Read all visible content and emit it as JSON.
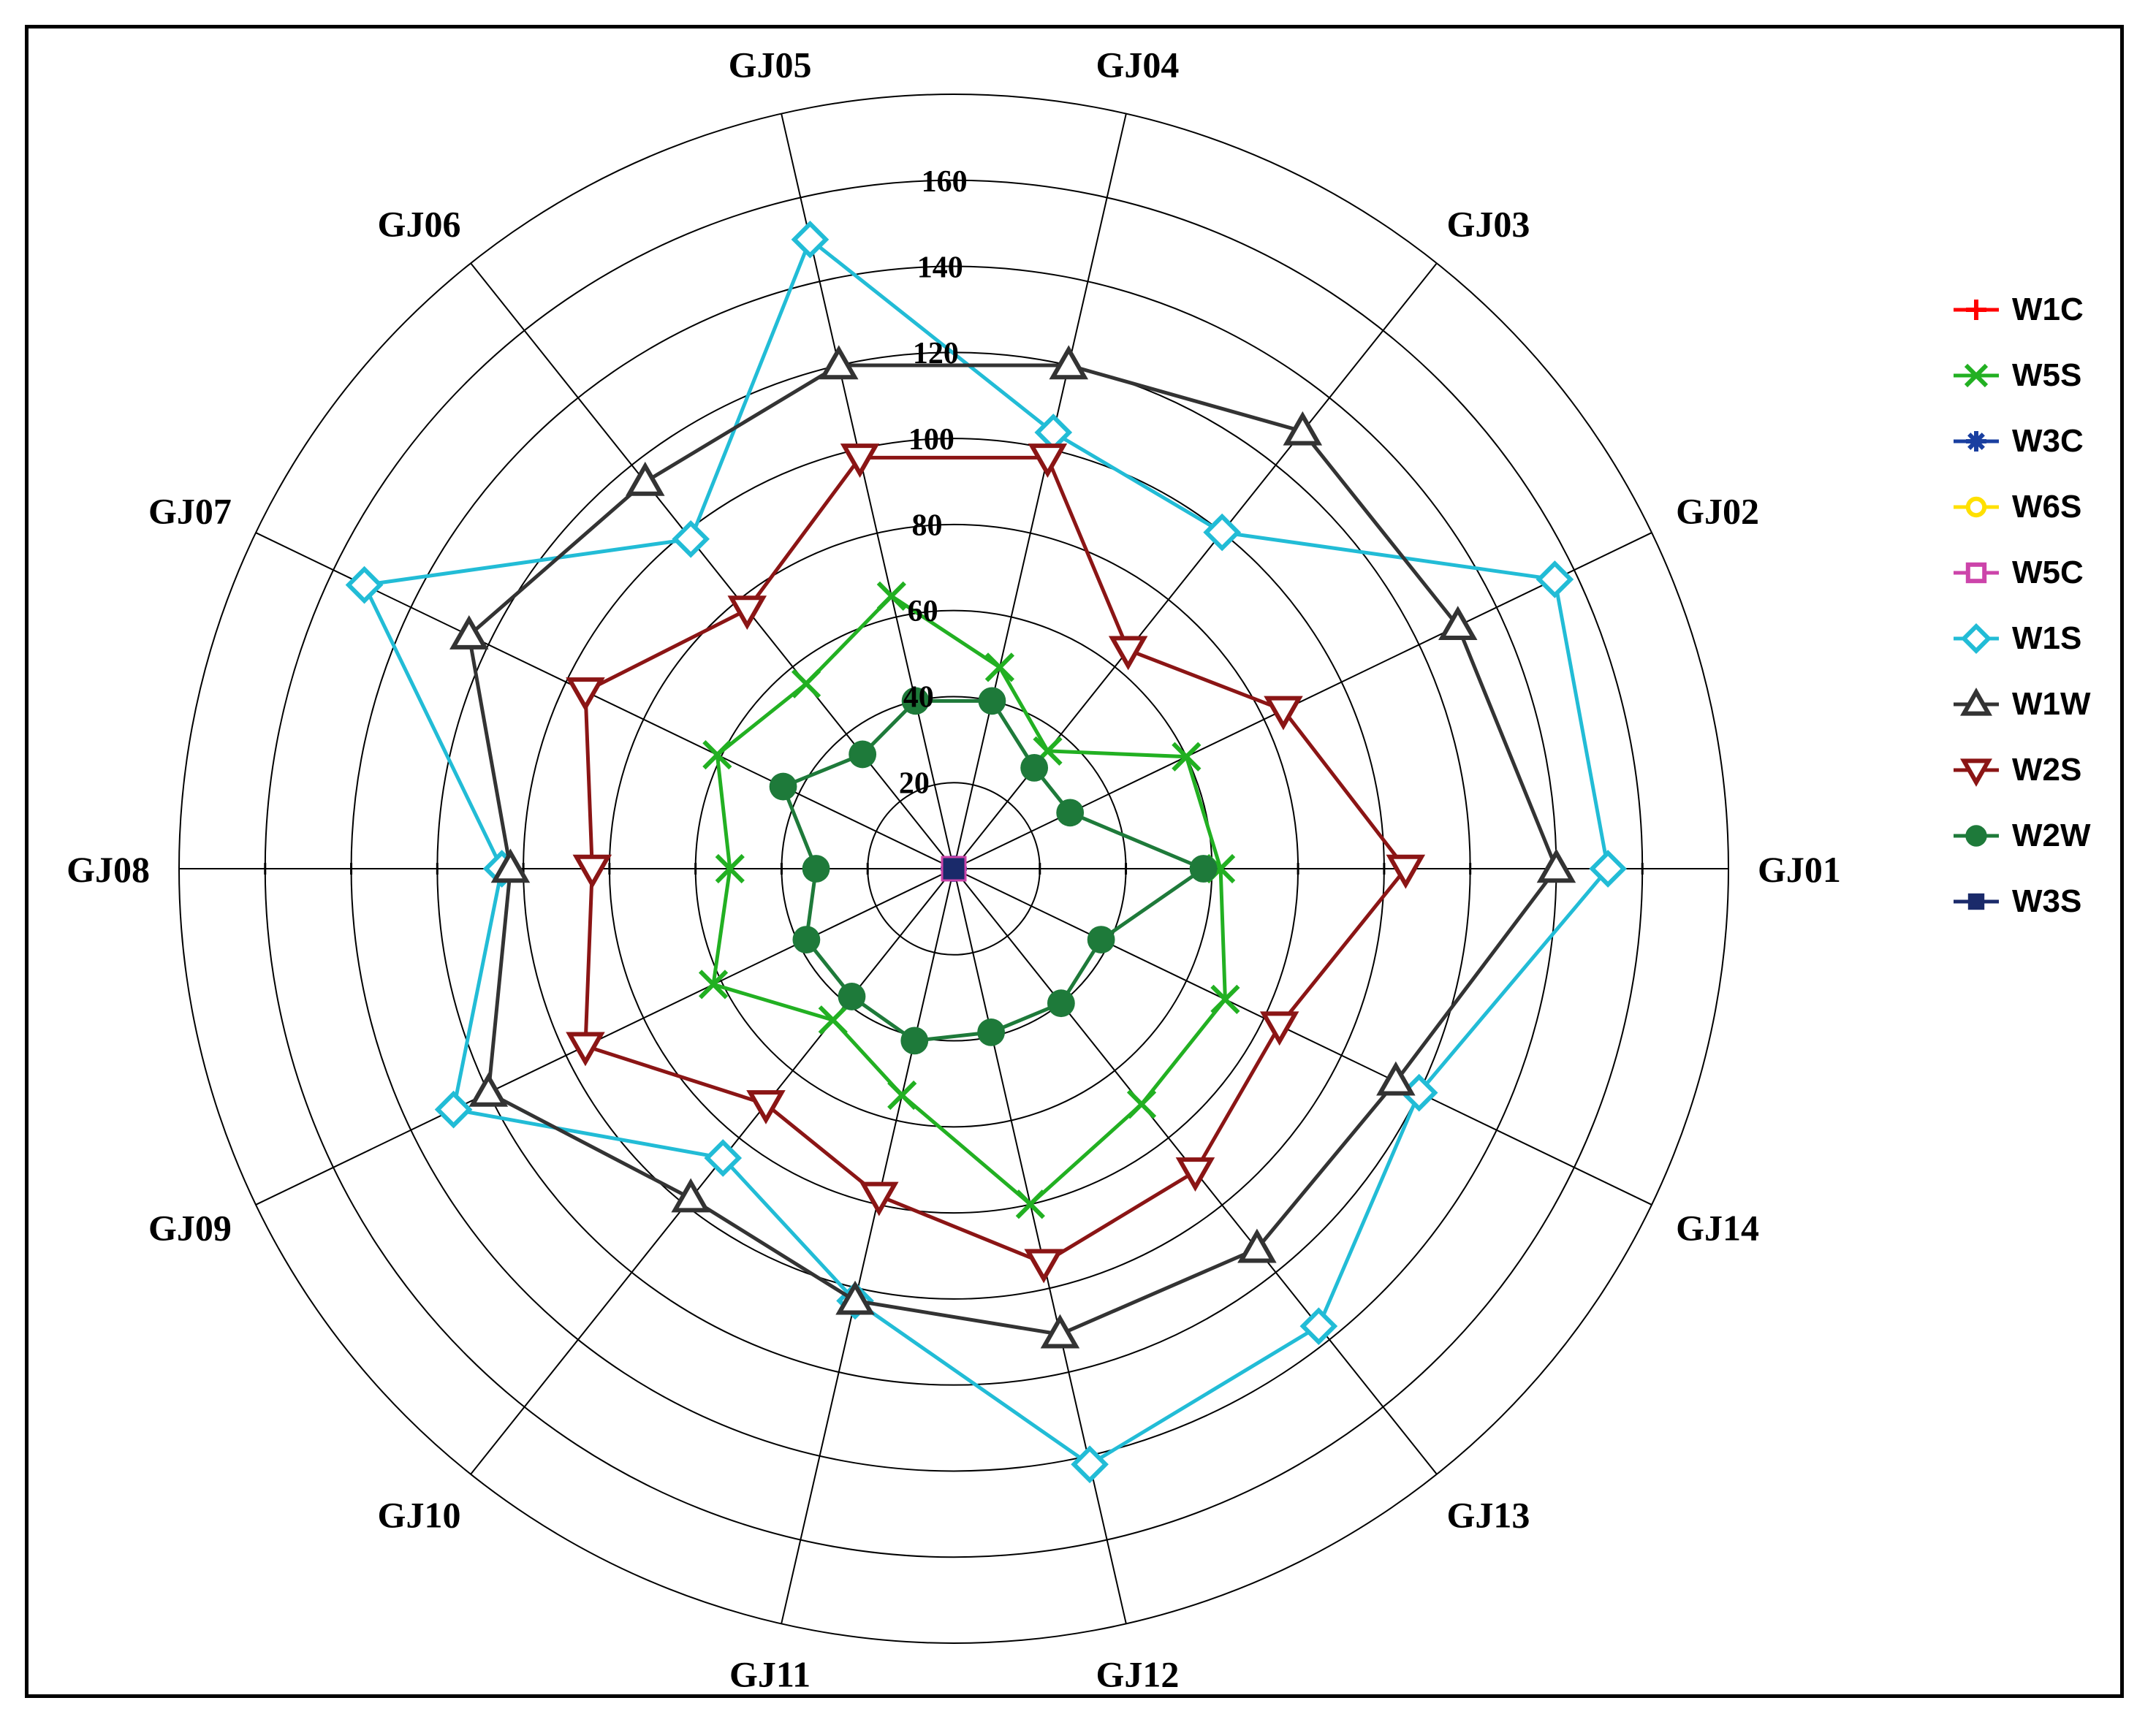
{
  "chart_data": {
    "type": "radar",
    "title": "",
    "categories": [
      "GJ01",
      "GJ02",
      "GJ03",
      "GJ04",
      "GJ05",
      "GJ06",
      "GJ07",
      "GJ08",
      "GJ09",
      "GJ10",
      "GJ11",
      "GJ12",
      "GJ13",
      "GJ14"
    ],
    "r_ticks": [
      20,
      40,
      60,
      80,
      100,
      120,
      140,
      160
    ],
    "r_tick_labels": [
      "20",
      "40",
      "60",
      "80",
      "100",
      "120",
      "140",
      "160"
    ],
    "r_range": [
      0,
      160
    ],
    "grid": true,
    "legend_position": "right",
    "series": [
      {
        "name": "W1C",
        "color": "#ff0000",
        "marker": "plus",
        "values": [
          0,
          0,
          0,
          0,
          0,
          0,
          0,
          0,
          0,
          0,
          0,
          0,
          0,
          0
        ]
      },
      {
        "name": "W5S",
        "color": "#22b022",
        "marker": "x",
        "values": [
          62,
          60,
          35,
          48,
          65,
          55,
          61,
          52,
          62,
          45,
          54,
          80,
          70,
          70
        ]
      },
      {
        "name": "W3C",
        "color": "#1a3fa0",
        "marker": "asterisk",
        "values": [
          0,
          0,
          0,
          0,
          0,
          0,
          0,
          0,
          0,
          0,
          0,
          0,
          0,
          0
        ]
      },
      {
        "name": "W6S",
        "color": "#ffe000",
        "marker": "circle",
        "values": [
          0,
          0,
          0,
          0,
          0,
          0,
          0,
          0,
          0,
          0,
          0,
          0,
          0,
          0
        ]
      },
      {
        "name": "W5C",
        "color": "#cc44aa",
        "marker": "square",
        "values": [
          0,
          0,
          0,
          0,
          0,
          0,
          0,
          0,
          0,
          0,
          0,
          0,
          0,
          0
        ]
      },
      {
        "name": "W1S",
        "color": "#22bcd6",
        "marker": "diamond",
        "values": [
          152,
          155,
          100,
          104,
          150,
          98,
          152,
          105,
          129,
          86,
          103,
          142,
          136,
          120
        ]
      },
      {
        "name": "W1W",
        "color": "#333333",
        "marker": "triangle-up",
        "values": [
          140,
          130,
          130,
          120,
          120,
          115,
          125,
          103,
          120,
          98,
          103,
          111,
          113,
          114
        ]
      },
      {
        "name": "W2S",
        "color": "#8b1515",
        "marker": "triangle-down",
        "values": [
          105,
          85,
          65,
          98,
          98,
          77,
          95,
          84,
          95,
          70,
          78,
          94,
          90,
          84
        ]
      },
      {
        "name": "W2W",
        "color": "#1e7a3a",
        "marker": "circle-filled",
        "values": [
          58,
          30,
          30,
          40,
          40,
          34,
          44,
          32,
          38,
          38,
          41,
          39,
          40,
          38
        ]
      },
      {
        "name": "W3S",
        "color": "#1a2a6a",
        "marker": "square-filled",
        "values": [
          0,
          0,
          0,
          0,
          0,
          0,
          0,
          0,
          0,
          0,
          0,
          0,
          0,
          0
        ]
      }
    ]
  }
}
